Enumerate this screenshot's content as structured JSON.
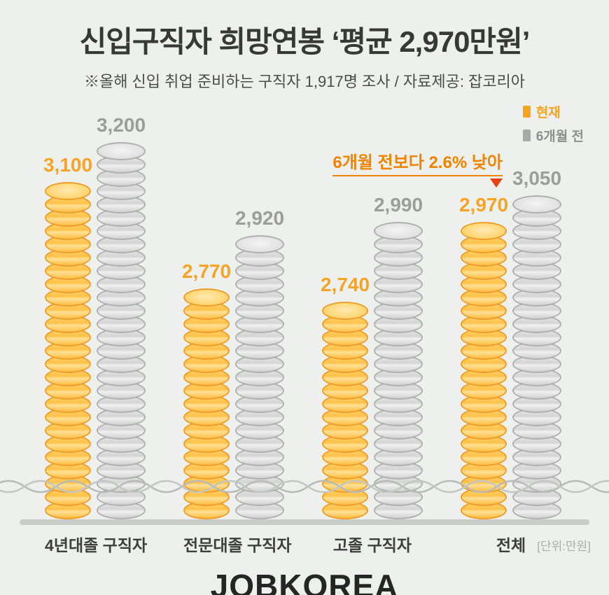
{
  "title": "신입구직자 희망연봉 ‘평균 2,970만원’",
  "subtitle": "※올해 신입 취업 준비하는 구직자 1,917명 조사  / 자료제공: 잡코리아",
  "legend": [
    {
      "label": "현재",
      "color": "#f6a41f"
    },
    {
      "label": "6개월 전",
      "color": "#8f8f8f",
      "swatch_color": "#a9a9a9"
    }
  ],
  "annotation": {
    "text": "6개월 전보다 2.6% 낮아",
    "color": "#f08300",
    "arrow_color": "#e8430e"
  },
  "unit_label": "[단위:만원]",
  "logo": "JOBKOREA",
  "chart_data": {
    "type": "bar",
    "title": "신입구직자 희망연봉 ‘평균 2,970만원’",
    "categories": [
      "4년대졸 구직자",
      "전문대졸 구직자",
      "고졸 구직자",
      "전체"
    ],
    "series": [
      {
        "name": "현재",
        "color": "#ffc24a",
        "edge_color": "#ef9e2b",
        "label_color": "#f5a427",
        "values": [
          3100,
          2770,
          2740,
          2970
        ],
        "value_labels": [
          "3,100",
          "2,770",
          "2,740",
          "2,970"
        ]
      },
      {
        "name": "6개월 전",
        "color": "#d9d9d9",
        "edge_color": "#b0b0b0",
        "label_color": "#9d9d9d",
        "values": [
          3200,
          2920,
          2990,
          3050
        ],
        "value_labels": [
          "3,200",
          "2,920",
          "2,990",
          "3,050"
        ]
      }
    ],
    "unit": "만원",
    "legend_position": "top-right",
    "axis_break": true,
    "grid": false,
    "ylim": [
      2040,
      3300
    ]
  }
}
